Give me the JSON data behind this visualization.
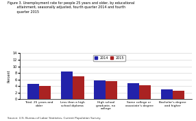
{
  "title": "Figure 3. Unemployment rate for people 25 years and older, by educational\n         attainment, seasonally adjusted, fourth quarter 2014 and fourth\n         quarter 2015",
  "ylabel": "Percent",
  "source": "Source: U.S. Bureau of Labor Statistics, Current Population Survey.",
  "categories": [
    "Total, 25 years and\nolder",
    "Less than a high\nschool diploma",
    "High school\ngraduate, no\ncollege",
    "Some college or\nassociate's degree",
    "Bachelor's degree\nand higher"
  ],
  "values_2014": [
    4.7,
    8.4,
    5.7,
    4.9,
    3.0
  ],
  "values_2015": [
    4.1,
    7.0,
    5.5,
    4.3,
    2.6
  ],
  "color_2014": "#2222aa",
  "color_2015": "#aa2222",
  "ylim": [
    0,
    14
  ],
  "yticks": [
    0,
    2,
    4,
    6,
    8,
    10,
    12,
    14
  ],
  "bar_width": 0.35,
  "legend_labels": [
    "2014",
    "2015"
  ],
  "background_color": "#ffffff"
}
